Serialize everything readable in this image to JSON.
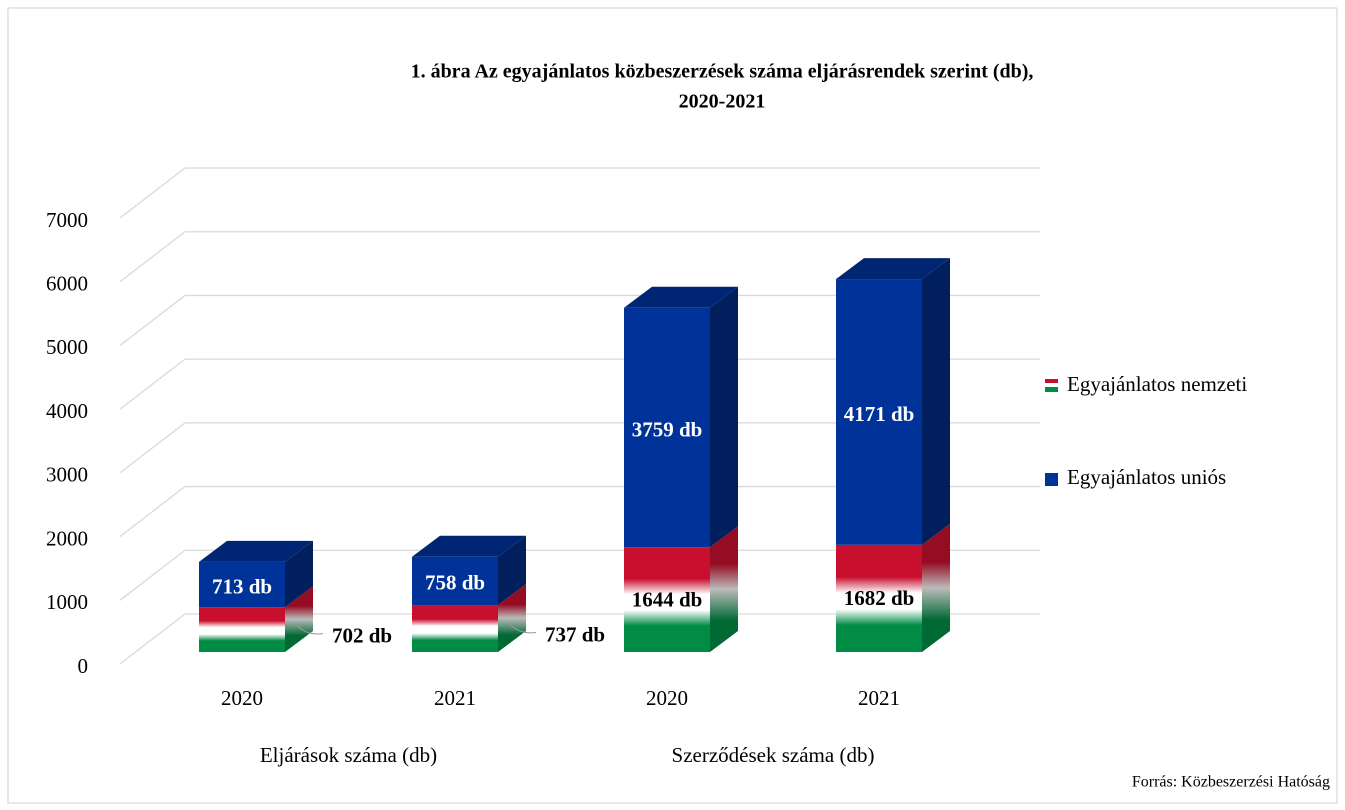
{
  "chart_data": {
    "type": "bar3d_stacked",
    "title": [
      "1. ábra Az egyajánlatos közbeszerzések száma eljárásrendek szerint (db),",
      "2020-2021"
    ],
    "categories": [
      "2020",
      "2021",
      "2020",
      "2021"
    ],
    "groups": [
      {
        "label": "Eljárások száma (db)",
        "span": [
          0,
          1
        ]
      },
      {
        "label": "Szerződések száma (db)",
        "span": [
          2,
          3
        ]
      }
    ],
    "series": [
      {
        "name": "Egyajánlatos nemzeti",
        "colors": [
          "#c8102e",
          "#ffffff",
          "#008c45"
        ],
        "values": [
          702,
          737,
          1644,
          1682
        ],
        "value_labels": [
          "702 db",
          "737 db",
          "1644 db",
          "1682 db"
        ]
      },
      {
        "name": "Egyajánlatos uniós",
        "color": "#003399",
        "values": [
          713,
          758,
          3759,
          4171
        ],
        "value_labels": [
          "713 db",
          "758 db",
          "3759 db",
          "4171 db"
        ]
      }
    ],
    "ylim": [
      0,
      7000
    ],
    "yticks": [
      0,
      1000,
      2000,
      3000,
      4000,
      5000,
      6000,
      7000
    ],
    "grid": true,
    "source": "Forrás: Közbeszerzési Hatóság"
  }
}
